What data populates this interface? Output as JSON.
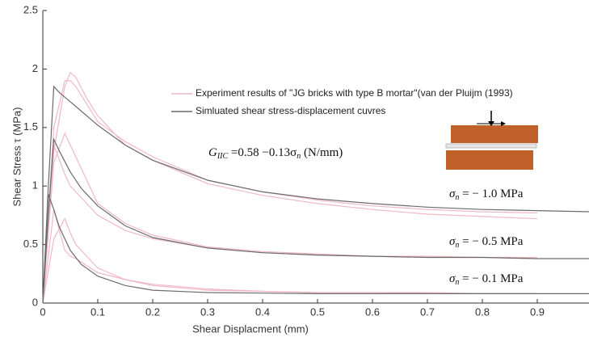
{
  "chart_data": {
    "type": "line",
    "xlabel": "Shear Displacment (mm)",
    "ylabel": "Shear Stress τ (MPa)",
    "xlim": [
      0,
      1
    ],
    "ylim": [
      0,
      2.5
    ],
    "xticks": [
      0,
      0.1,
      0.2,
      0.3,
      0.4,
      0.5,
      0.6,
      0.7,
      0.8,
      0.9
    ],
    "yticks": [
      0,
      0.5,
      1,
      1.5,
      2,
      2.5
    ],
    "series": [
      {
        "name": "Experiment results of \"JG bricks with type B mortar\"(van der Pluijm (1993)",
        "color": "#f0b8c4",
        "curves": [
          {
            "x": [
              0,
              0.02,
              0.04,
              0.05,
              0.06,
              0.08,
              0.1,
              0.15,
              0.2,
              0.3,
              0.4,
              0.5,
              0.6,
              0.7,
              0.8,
              0.9
            ],
            "values": [
              0,
              1.3,
              1.85,
              1.97,
              1.93,
              1.75,
              1.6,
              1.35,
              1.22,
              1.02,
              0.92,
              0.85,
              0.8,
              0.76,
              0.74,
              0.72
            ]
          },
          {
            "x": [
              0,
              0.02,
              0.04,
              0.05,
              0.06,
              0.08,
              0.1,
              0.15,
              0.2,
              0.3,
              0.4,
              0.5,
              0.6,
              0.7,
              0.8,
              0.9
            ],
            "values": [
              0,
              1.5,
              1.9,
              1.9,
              1.85,
              1.7,
              1.55,
              1.38,
              1.25,
              1.05,
              0.95,
              0.88,
              0.83,
              0.8,
              0.78,
              0.77
            ]
          },
          {
            "x": [
              0,
              0.02,
              0.04,
              0.05,
              0.06,
              0.08,
              0.1,
              0.15,
              0.2,
              0.3,
              0.4,
              0.5,
              0.6,
              0.7,
              0.8,
              0.9
            ],
            "values": [
              0,
              1.2,
              1.45,
              1.35,
              1.25,
              1.05,
              0.85,
              0.68,
              0.58,
              0.48,
              0.44,
              0.42,
              0.4,
              0.4,
              0.39,
              0.39
            ]
          },
          {
            "x": [
              0,
              0.02,
              0.04,
              0.05,
              0.06,
              0.08,
              0.1,
              0.15,
              0.2,
              0.3,
              0.4,
              0.5,
              0.6,
              0.7,
              0.8,
              0.9
            ],
            "values": [
              0,
              1.35,
              1.1,
              1.0,
              0.95,
              0.85,
              0.75,
              0.62,
              0.55,
              0.47,
              0.43,
              0.41,
              0.4,
              0.39,
              0.39,
              0.38
            ]
          },
          {
            "x": [
              0,
              0.02,
              0.04,
              0.05,
              0.06,
              0.08,
              0.1,
              0.15,
              0.2,
              0.3,
              0.4,
              0.5,
              0.6,
              0.7,
              0.8,
              0.9
            ],
            "values": [
              0,
              0.8,
              0.45,
              0.4,
              0.38,
              0.32,
              0.26,
              0.2,
              0.16,
              0.12,
              0.1,
              0.09,
              0.09,
              0.08,
              0.08,
              0.08
            ]
          },
          {
            "x": [
              0,
              0.02,
              0.04,
              0.05,
              0.06,
              0.08,
              0.1,
              0.15,
              0.2,
              0.3,
              0.4,
              0.5,
              0.6,
              0.7,
              0.8,
              0.9
            ],
            "values": [
              0,
              0.55,
              0.72,
              0.6,
              0.5,
              0.4,
              0.3,
              0.2,
              0.15,
              0.11,
              0.1,
              0.09,
              0.09,
              0.09,
              0.08,
              0.08
            ]
          }
        ]
      },
      {
        "name": "Simluated shear stress-displacement cuvres",
        "color": "#6b6b6b",
        "curves": [
          {
            "x": [
              0,
              0.01,
              0.02,
              0.03,
              0.05,
              0.07,
              0.1,
              0.15,
              0.2,
              0.3,
              0.4,
              0.5,
              0.6,
              0.7,
              0.8,
              0.9,
              1.0
            ],
            "values": [
              0,
              1.0,
              1.85,
              1.8,
              1.72,
              1.64,
              1.52,
              1.35,
              1.22,
              1.05,
              0.95,
              0.89,
              0.85,
              0.82,
              0.8,
              0.79,
              0.78
            ]
          },
          {
            "x": [
              0,
              0.01,
              0.02,
              0.03,
              0.05,
              0.07,
              0.1,
              0.15,
              0.2,
              0.3,
              0.4,
              0.5,
              0.6,
              0.7,
              0.8,
              0.9,
              1.0
            ],
            "values": [
              0,
              0.75,
              1.4,
              1.3,
              1.12,
              0.98,
              0.83,
              0.66,
              0.56,
              0.47,
              0.43,
              0.41,
              0.4,
              0.39,
              0.39,
              0.38,
              0.38
            ]
          },
          {
            "x": [
              0,
              0.01,
              0.02,
              0.03,
              0.05,
              0.07,
              0.1,
              0.15,
              0.2,
              0.3,
              0.4,
              0.5,
              0.6,
              0.7,
              0.8,
              0.9,
              1.0
            ],
            "values": [
              0,
              0.93,
              0.8,
              0.65,
              0.45,
              0.33,
              0.23,
              0.15,
              0.11,
              0.09,
              0.085,
              0.08,
              0.08,
              0.08,
              0.08,
              0.08,
              0.08
            ]
          }
        ]
      }
    ],
    "formula": {
      "symbol": "G",
      "sub": "IIC",
      "text": " =0.58 −0.13σ",
      "sub2": "n",
      "unit": "  (N/mm)"
    },
    "annotations": [
      {
        "symbol": "σ",
        "sub": "n",
        "text": " = − 1.0 MPa"
      },
      {
        "symbol": "σ",
        "sub": "n",
        "text": " = − 0.5 MPa"
      },
      {
        "symbol": "σ",
        "sub": "n",
        "text": " = − 0.1 MPa"
      }
    ]
  }
}
